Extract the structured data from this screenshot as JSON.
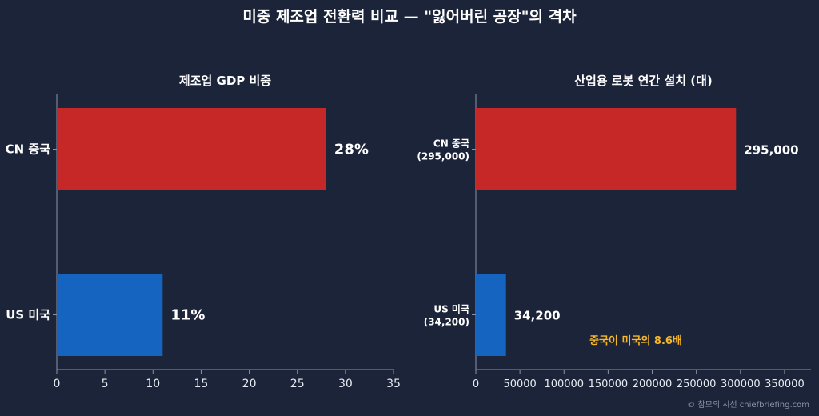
{
  "title": "미중 제조업 전환력 비교 — \"잃어버린 공장\"의 격차",
  "credit": "© 참모의 시선 chiefbriefing.com",
  "colors": {
    "background": "#1c243a",
    "china": "#c62828",
    "us": "#1565c0",
    "annotation": "#f5b62a",
    "axis": "#8a93a6"
  },
  "chart_data": [
    {
      "type": "bar",
      "orientation": "horizontal",
      "title": "제조업 GDP 비중",
      "categories": [
        "CN 중국",
        "US 미국"
      ],
      "values": [
        28,
        11
      ],
      "data_labels": [
        "28%",
        "11%"
      ],
      "xlim": [
        0,
        35
      ],
      "xticks": [
        0,
        5,
        10,
        15,
        20,
        25,
        30,
        35
      ],
      "grid": false
    },
    {
      "type": "bar",
      "orientation": "horizontal",
      "title": "산업용 로봇 연간 설치 (대)",
      "categories": [
        "CN 중국\n(295,000)",
        "US 미국\n(34,200)"
      ],
      "values": [
        295000,
        34200
      ],
      "data_labels": [
        "295,000",
        "34,200"
      ],
      "xlim": [
        0,
        380000
      ],
      "xticks": [
        0,
        50000,
        100000,
        150000,
        200000,
        250000,
        300000,
        350000
      ],
      "annotation": "중국이 미국의 8.6배",
      "grid": false
    }
  ]
}
